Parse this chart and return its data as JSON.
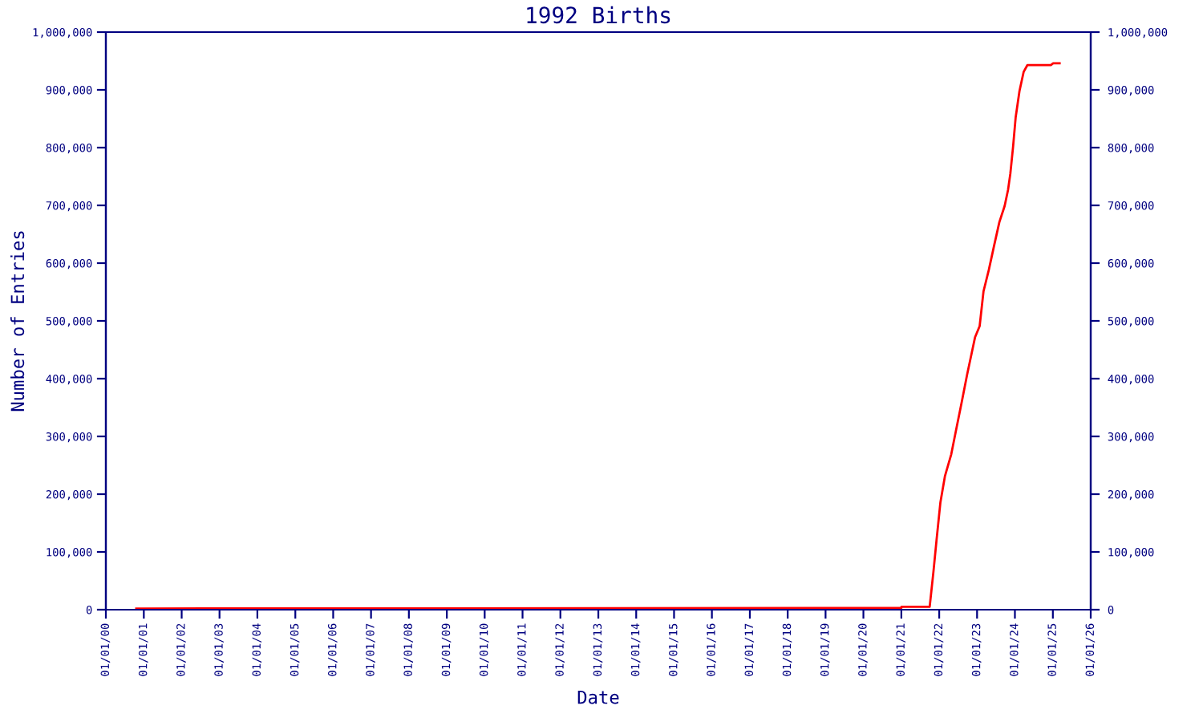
{
  "chart_data": {
    "type": "line",
    "title": "1992 Births",
    "xlabel": "Date",
    "ylabel": "Number of Entries",
    "x": [
      "2000-10-20",
      "2021-01-01",
      "2021-01-02",
      "2021-10-01",
      "2021-11-06",
      "2021-12-06",
      "2022-01-12",
      "2022-02-25",
      "2022-04-27",
      "2022-06-17",
      "2022-08-08",
      "2022-09-27",
      "2022-11-10",
      "2022-12-13",
      "2023-01-26",
      "2023-03-04",
      "2023-04-24",
      "2023-06-14",
      "2023-08-04",
      "2023-09-24",
      "2023-10-27",
      "2023-11-18",
      "2023-12-14",
      "2024-01-08",
      "2024-02-14",
      "2024-03-25",
      "2024-05-01",
      "2024-12-13",
      "2025-01-04",
      "2025-03-07"
    ],
    "series": [
      {
        "color": "#ff0000",
        "values": [
          2000,
          3000,
          5000,
          5000,
          65000,
          120000,
          185000,
          231000,
          269000,
          315000,
          361000,
          407000,
          444000,
          472000,
          491000,
          551000,
          588000,
          630000,
          671000,
          699000,
          727000,
          755000,
          801000,
          852000,
          898000,
          931000,
          943000,
          943000,
          946000,
          946000
        ]
      }
    ],
    "xlim": [
      "2000-01-01",
      "2026-01-01"
    ],
    "xticks": [
      {
        "value": "2000-01-01",
        "label": "01/01/00"
      },
      {
        "value": "2001-01-01",
        "label": "01/01/01"
      },
      {
        "value": "2002-01-01",
        "label": "01/01/02"
      },
      {
        "value": "2003-01-01",
        "label": "01/01/03"
      },
      {
        "value": "2004-01-01",
        "label": "01/01/04"
      },
      {
        "value": "2005-01-01",
        "label": "01/01/05"
      },
      {
        "value": "2006-01-01",
        "label": "01/01/06"
      },
      {
        "value": "2007-01-01",
        "label": "01/01/07"
      },
      {
        "value": "2008-01-01",
        "label": "01/01/08"
      },
      {
        "value": "2009-01-01",
        "label": "01/01/09"
      },
      {
        "value": "2010-01-01",
        "label": "01/01/10"
      },
      {
        "value": "2011-01-01",
        "label": "01/01/11"
      },
      {
        "value": "2012-01-01",
        "label": "01/01/12"
      },
      {
        "value": "2013-01-01",
        "label": "01/01/13"
      },
      {
        "value": "2014-01-01",
        "label": "01/01/14"
      },
      {
        "value": "2015-01-01",
        "label": "01/01/15"
      },
      {
        "value": "2016-01-01",
        "label": "01/01/16"
      },
      {
        "value": "2017-01-01",
        "label": "01/01/17"
      },
      {
        "value": "2018-01-01",
        "label": "01/01/18"
      },
      {
        "value": "2019-01-01",
        "label": "01/01/19"
      },
      {
        "value": "2020-01-01",
        "label": "01/01/20"
      },
      {
        "value": "2021-01-01",
        "label": "01/01/21"
      },
      {
        "value": "2022-01-01",
        "label": "01/01/22"
      },
      {
        "value": "2023-01-01",
        "label": "01/01/23"
      },
      {
        "value": "2024-01-01",
        "label": "01/01/24"
      },
      {
        "value": "2025-01-01",
        "label": "01/01/25"
      },
      {
        "value": "2026-01-01",
        "label": "01/01/26"
      }
    ],
    "ylim": [
      0,
      1000000
    ],
    "yticks": [
      0,
      {
        "value": 100000,
        "label": "100,000"
      },
      {
        "value": 200000,
        "label": "200,000"
      },
      {
        "value": 300000,
        "label": "300,000"
      },
      {
        "value": 400000,
        "label": "400,000"
      },
      {
        "value": 500000,
        "label": "500,000"
      },
      {
        "value": 600000,
        "label": "600,000"
      },
      {
        "value": 700000,
        "label": "700,000"
      },
      {
        "value": 800000,
        "label": "800,000"
      },
      {
        "value": 900000,
        "label": "900,000"
      },
      {
        "value": 1000000,
        "label": "1,000,000"
      }
    ],
    "y2lim": [
      0,
      1000000
    ],
    "y2ticks": [
      0,
      {
        "value": 100000,
        "label": "100,000"
      },
      {
        "value": 200000,
        "label": "200,000"
      },
      {
        "value": 300000,
        "label": "300,000"
      },
      {
        "value": 400000,
        "label": "400,000"
      },
      {
        "value": 500000,
        "label": "500,000"
      },
      {
        "value": 600000,
        "label": "600,000"
      },
      {
        "value": 700000,
        "label": "700,000"
      },
      {
        "value": 800000,
        "label": "800,000"
      },
      {
        "value": 900000,
        "label": "900,000"
      },
      {
        "value": 1000000,
        "label": "1,000,000"
      }
    ],
    "grid": false
  }
}
